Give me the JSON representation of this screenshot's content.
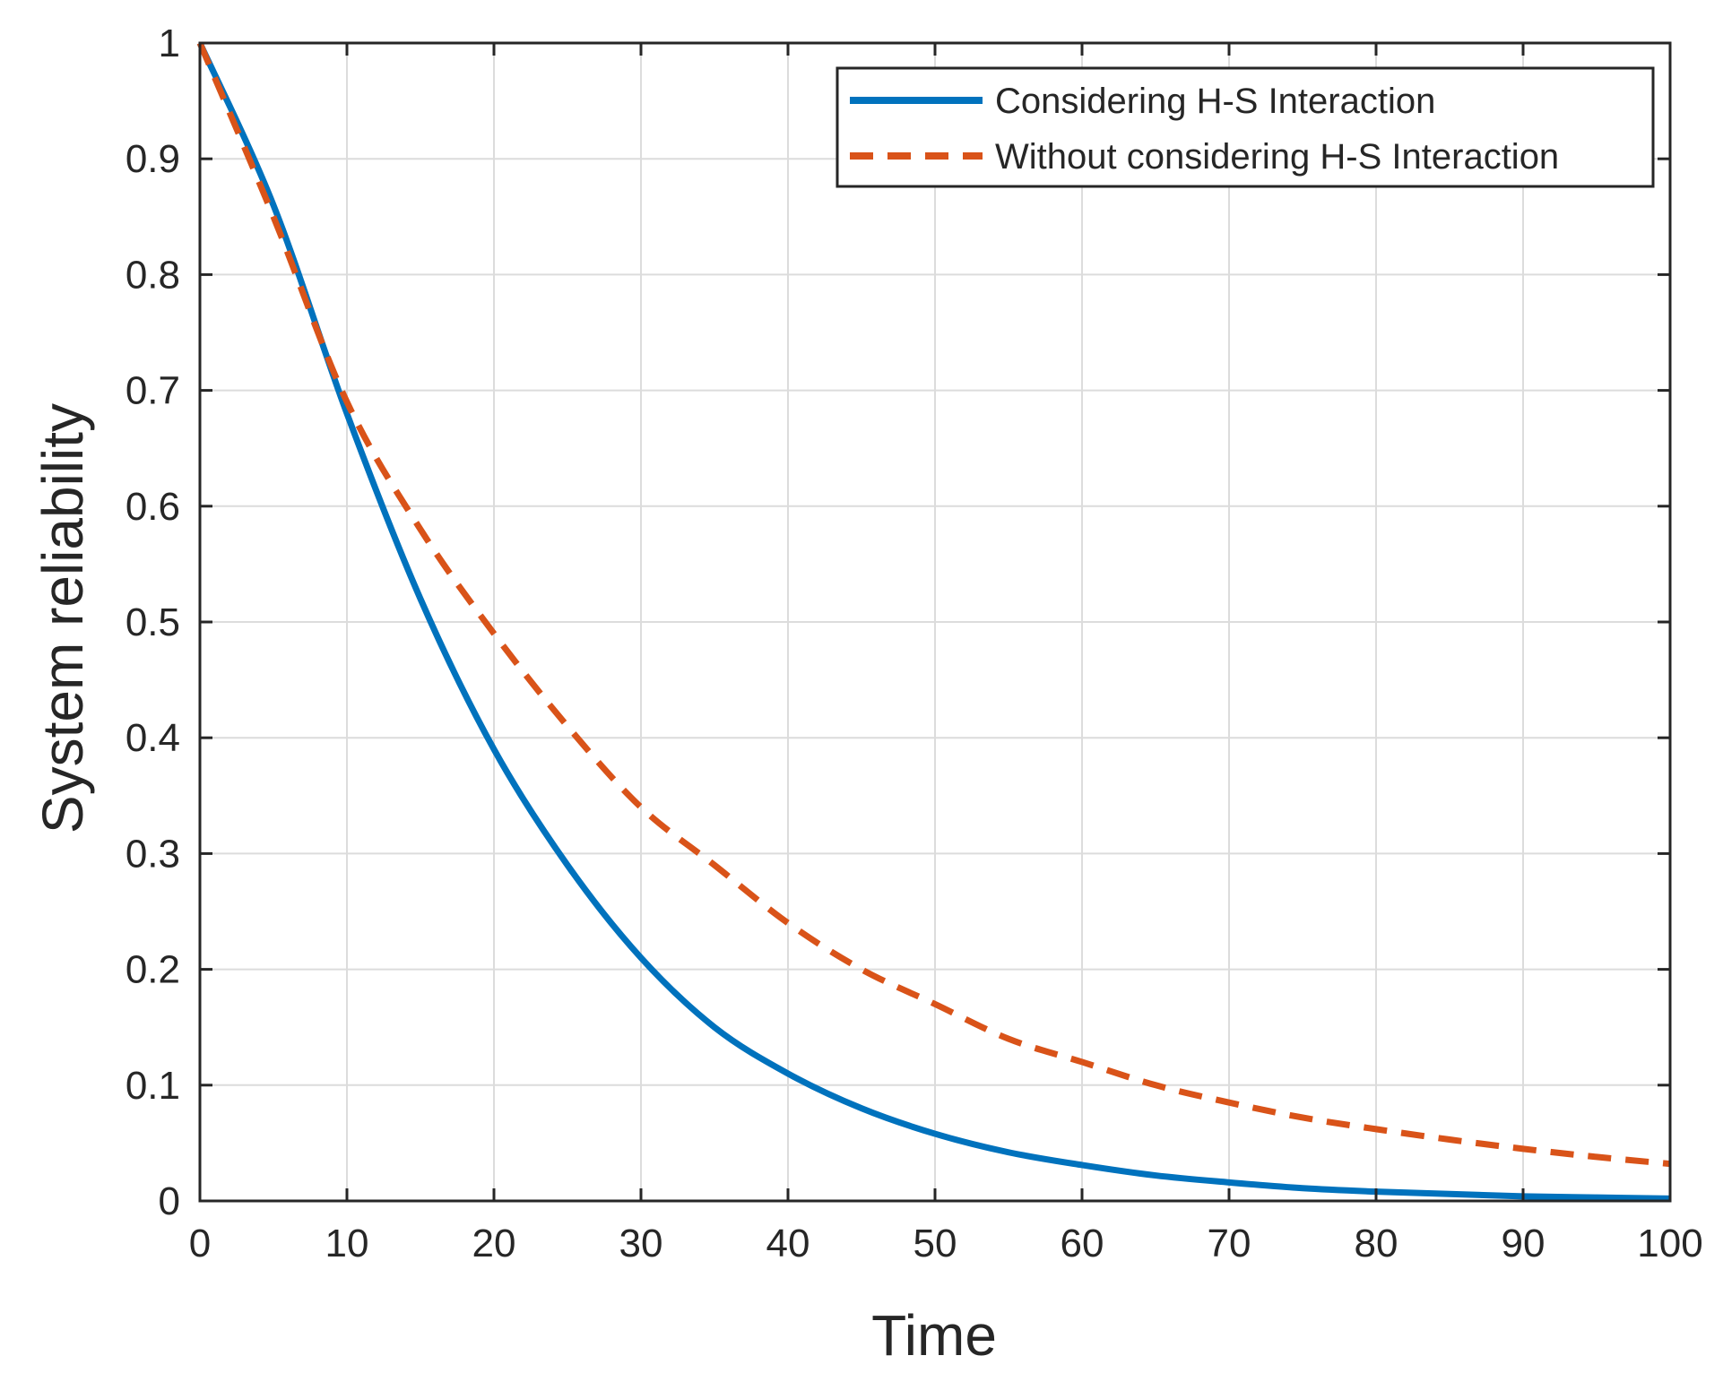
{
  "chart_data": {
    "type": "line",
    "title": "",
    "xlabel": "Time",
    "ylabel": "System reliability",
    "xlim": [
      0,
      100
    ],
    "ylim": [
      0,
      1
    ],
    "grid": true,
    "legend_position": "top-right",
    "x_ticks": [
      0,
      10,
      20,
      30,
      40,
      50,
      60,
      70,
      80,
      90,
      100
    ],
    "x_tick_labels": [
      "0",
      "10",
      "20",
      "30",
      "40",
      "50",
      "60",
      "70",
      "80",
      "90",
      "100"
    ],
    "y_ticks": [
      0,
      0.1,
      0.2,
      0.3,
      0.4,
      0.5,
      0.6,
      0.7,
      0.8,
      0.9,
      1
    ],
    "y_tick_labels": [
      "0",
      "0.1",
      "0.2",
      "0.3",
      "0.4",
      "0.5",
      "0.6",
      "0.7",
      "0.8",
      "0.9",
      "1"
    ],
    "x": [
      0,
      5,
      10,
      15,
      20,
      25,
      30,
      35,
      40,
      45,
      50,
      55,
      60,
      65,
      70,
      75,
      80,
      85,
      90,
      95,
      100
    ],
    "series": [
      {
        "name": "Considering H-S Interaction",
        "style": "solid",
        "color": "#0072BD",
        "values": [
          1.0,
          0.86,
          0.68,
          0.52,
          0.39,
          0.29,
          0.21,
          0.15,
          0.11,
          0.08,
          0.058,
          0.042,
          0.031,
          0.022,
          0.016,
          0.011,
          0.008,
          0.006,
          0.004,
          0.003,
          0.002
        ]
      },
      {
        "name": "Without considering H-S Interaction",
        "style": "dashed",
        "color": "#D95319",
        "values": [
          1.0,
          0.85,
          0.69,
          0.58,
          0.49,
          0.41,
          0.34,
          0.29,
          0.24,
          0.2,
          0.17,
          0.14,
          0.12,
          0.1,
          0.085,
          0.072,
          0.062,
          0.053,
          0.045,
          0.038,
          0.032
        ]
      }
    ]
  }
}
